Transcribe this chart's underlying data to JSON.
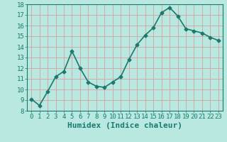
{
  "x": [
    0,
    1,
    2,
    3,
    4,
    5,
    6,
    7,
    8,
    9,
    10,
    11,
    12,
    13,
    14,
    15,
    16,
    17,
    18,
    19,
    20,
    21,
    22,
    23
  ],
  "y": [
    9.1,
    8.5,
    9.8,
    11.2,
    11.7,
    13.6,
    12.0,
    10.7,
    10.3,
    10.2,
    10.7,
    11.2,
    12.8,
    14.2,
    15.1,
    15.8,
    17.2,
    17.7,
    16.9,
    15.7,
    15.5,
    15.3,
    14.9,
    14.6
  ],
  "line_color": "#1a7a6e",
  "marker": "D",
  "marker_size": 2.5,
  "bg_color": "#b8e8e0",
  "grid_color": "#d4a0a0",
  "xlabel": "Humidex (Indice chaleur)",
  "ylabel": "",
  "xlim": [
    -0.5,
    23.5
  ],
  "ylim": [
    8,
    18
  ],
  "yticks": [
    8,
    9,
    10,
    11,
    12,
    13,
    14,
    15,
    16,
    17,
    18
  ],
  "xticks": [
    0,
    1,
    2,
    3,
    4,
    5,
    6,
    7,
    8,
    9,
    10,
    11,
    12,
    13,
    14,
    15,
    16,
    17,
    18,
    19,
    20,
    21,
    22,
    23
  ],
  "tick_color": "#1a7a6e",
  "label_color": "#1a7a6e",
  "font_size": 6.5,
  "xlabel_fontsize": 8,
  "linewidth": 1.2
}
